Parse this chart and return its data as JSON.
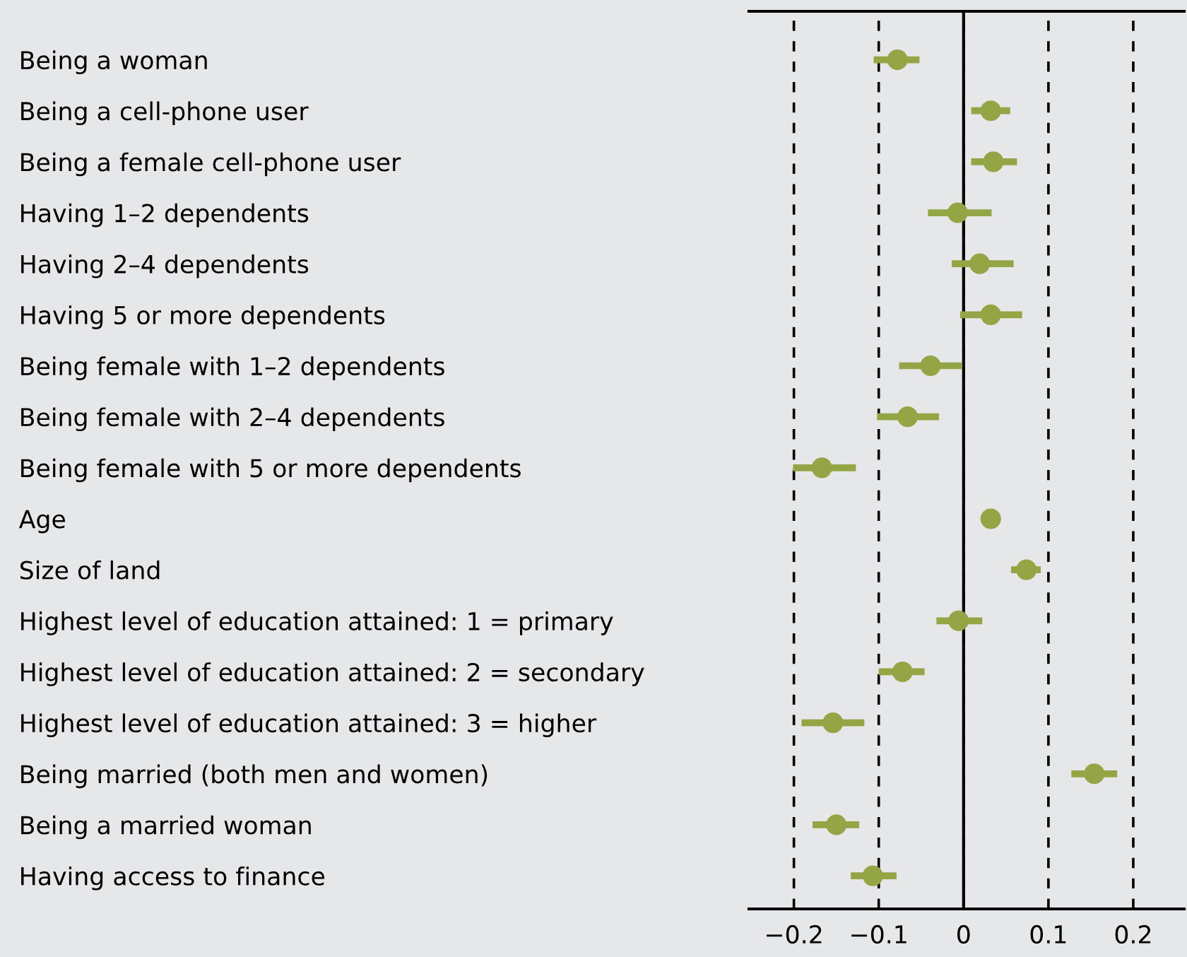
{
  "chart_data": {
    "type": "scatter",
    "orientation": "horizontal",
    "categories": [
      "Being a woman",
      "Being a cell-phone user",
      "Being a female cell-phone user",
      "Having 1–2 dependents",
      "Having 2–4 dependents",
      "Having 5 or more dependents",
      "Being female with 1–2 dependents",
      "Being female with 2–4 dependents",
      "Being female with 5 or more dependents",
      "Age",
      "Size of land",
      "Highest level of education attained: 1 = primary",
      "Highest level of education attained: 2 = secondary",
      "Highest level of education attained: 3 = higher",
      "Being married (both men and women)",
      "Being a married woman",
      "Having access to finance"
    ],
    "series": [
      {
        "color": "#94a545",
        "values": [
          -0.078,
          0.032,
          0.035,
          -0.007,
          0.019,
          0.032,
          -0.039,
          -0.066,
          -0.167,
          0.032,
          0.074,
          -0.006,
          -0.072,
          -0.154,
          0.154,
          -0.15,
          -0.107
        ],
        "errors": [
          [
            -0.106,
            -0.052
          ],
          [
            0.009,
            0.055
          ],
          [
            0.009,
            0.063
          ],
          [
            -0.042,
            0.033
          ],
          [
            -0.014,
            0.059
          ],
          [
            -0.004,
            0.069
          ],
          [
            -0.076,
            -0.002
          ],
          [
            -0.102,
            -0.029
          ],
          [
            -0.201,
            -0.127
          ],
          null,
          [
            0.056,
            0.091
          ],
          [
            -0.032,
            0.022
          ],
          [
            -0.1,
            -0.046
          ],
          [
            -0.191,
            -0.117
          ],
          [
            0.127,
            0.181
          ],
          [
            -0.178,
            -0.123
          ],
          [
            -0.133,
            -0.079
          ]
        ]
      }
    ],
    "xlim": [
      -0.253,
      0.26
    ],
    "xticks": [
      {
        "value": -0.2,
        "label": "−0.2"
      },
      {
        "value": -0.1,
        "label": "−0.1"
      },
      0,
      0.1,
      0.2
    ],
    "grid": "x",
    "marker": "circle",
    "legend": false,
    "ref_lines": [
      {
        "axis": "x",
        "value": 0,
        "color": "#000000",
        "line_style": "solid"
      }
    ]
  }
}
